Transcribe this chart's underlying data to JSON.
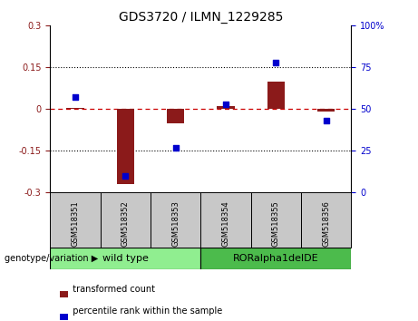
{
  "title": "GDS3720 / ILMN_1229285",
  "samples": [
    "GSM518351",
    "GSM518352",
    "GSM518353",
    "GSM518354",
    "GSM518355",
    "GSM518356"
  ],
  "red_bars": [
    0.005,
    -0.27,
    -0.05,
    0.01,
    0.1,
    -0.01
  ],
  "blue_dots": [
    57,
    10,
    27,
    53,
    78,
    43
  ],
  "ylim_left": [
    -0.3,
    0.3
  ],
  "ylim_right": [
    0,
    100
  ],
  "yticks_left": [
    -0.3,
    -0.15,
    0,
    0.15,
    0.3
  ],
  "yticks_right": [
    0,
    25,
    50,
    75,
    100
  ],
  "dotted_lines": [
    -0.15,
    0.15
  ],
  "red_color": "#8B1A1A",
  "blue_color": "#0000CD",
  "red_dashed_color": "#CC0000",
  "group1_label": "wild type",
  "group2_label": "RORalpha1delDE",
  "group1_indices": [
    0,
    1,
    2
  ],
  "group2_indices": [
    3,
    4,
    5
  ],
  "group1_color": "#90EE90",
  "group2_color": "#4CBB4C",
  "genotype_label": "genotype/variation",
  "legend_red": "transformed count",
  "legend_blue": "percentile rank within the sample",
  "bar_width": 0.35,
  "sample_box_color": "#C8C8C8"
}
